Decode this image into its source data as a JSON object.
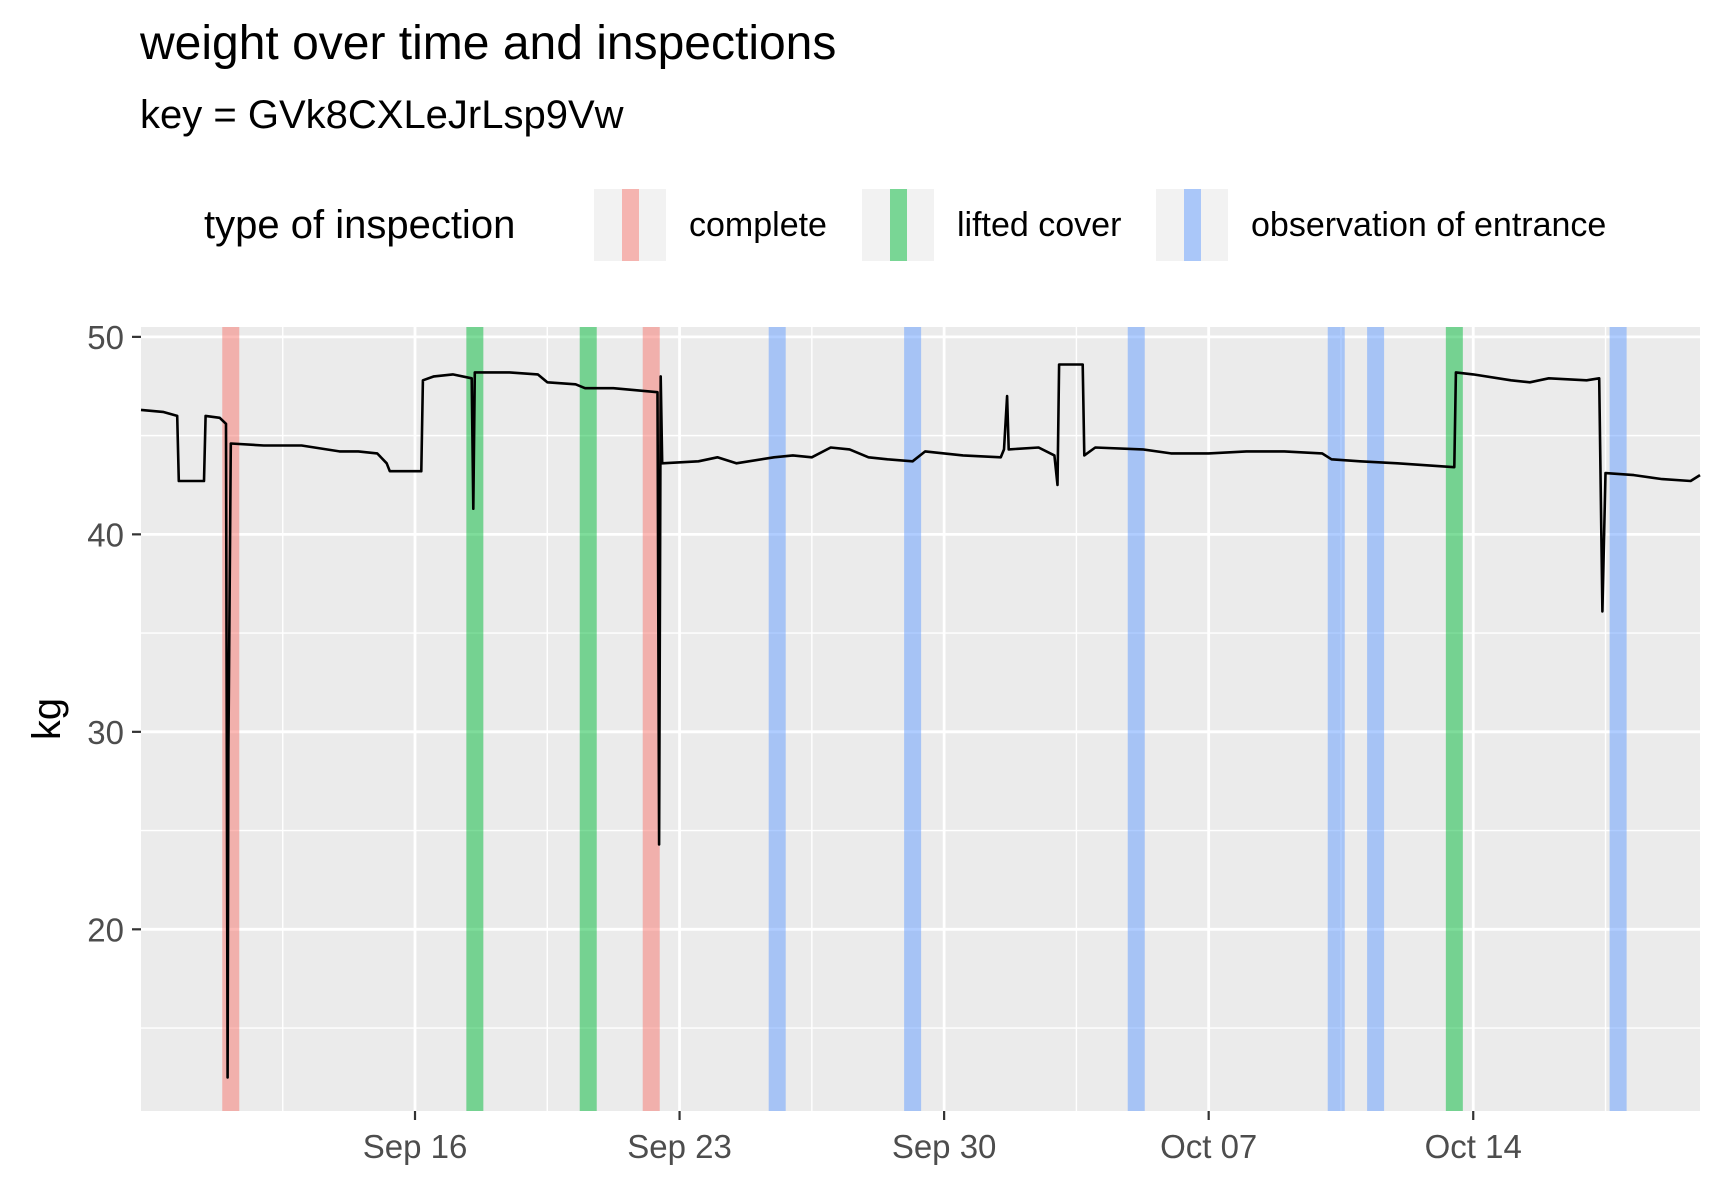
{
  "chart_data": {
    "type": "line",
    "title": "weight over time and inspections",
    "subtitle": "key = GVk8CXLeJrLsp9Vw",
    "xlabel": "",
    "ylabel": "kg",
    "x_type": "date",
    "xlim": [
      "2025-09-08T18:00",
      "2025-10-20T00:00"
    ],
    "ylim": [
      10.8,
      50.5
    ],
    "x_ticks": [
      "2025-09-16",
      "2025-09-23",
      "2025-09-30",
      "2025-10-07",
      "2025-10-14"
    ],
    "x_tick_labels": [
      "Sep 16",
      "Sep 23",
      "Sep 30",
      "Oct 07",
      "Oct 14"
    ],
    "y_ticks": [
      20,
      30,
      40,
      50
    ],
    "y_tick_labels": [
      "20",
      "30",
      "40",
      "50"
    ],
    "grid": true,
    "legend": {
      "title": "type of inspection",
      "position": "top",
      "items": [
        {
          "label": "complete",
          "color": "#f8766d"
        },
        {
          "label": "lifted cover",
          "color": "#00ba38"
        },
        {
          "label": "observation of entrance",
          "color": "#619cff"
        }
      ]
    },
    "inspections": [
      {
        "date": "2025-09-11T03:00",
        "type": "complete"
      },
      {
        "date": "2025-09-17T14:00",
        "type": "lifted cover"
      },
      {
        "date": "2025-09-20T14:00",
        "type": "lifted cover"
      },
      {
        "date": "2025-09-22T06:00",
        "type": "complete"
      },
      {
        "date": "2025-09-25T14:00",
        "type": "observation of entrance"
      },
      {
        "date": "2025-09-29T04:00",
        "type": "observation of entrance"
      },
      {
        "date": "2025-10-05T02:00",
        "type": "observation of entrance"
      },
      {
        "date": "2025-10-10T09:00",
        "type": "observation of entrance"
      },
      {
        "date": "2025-10-11T10:00",
        "type": "observation of entrance"
      },
      {
        "date": "2025-10-13T12:00",
        "type": "lifted cover"
      },
      {
        "date": "2025-10-17T20:00",
        "type": "observation of entrance"
      }
    ],
    "series": [
      {
        "color": "#000000",
        "points": [
          [
            "2025-09-08T18:00",
            46.3
          ],
          [
            "2025-09-09T08:00",
            46.2
          ],
          [
            "2025-09-09T17:00",
            46.0
          ],
          [
            "2025-09-09T18:00",
            42.7
          ],
          [
            "2025-09-10T10:00",
            42.7
          ],
          [
            "2025-09-10T11:00",
            46.0
          ],
          [
            "2025-09-10T20:00",
            45.9
          ],
          [
            "2025-09-11T00:00",
            45.6
          ],
          [
            "2025-09-11T01:00",
            12.5
          ],
          [
            "2025-09-11T01:30",
            29.0
          ],
          [
            "2025-09-11T03:00",
            44.6
          ],
          [
            "2025-09-12T00:00",
            44.5
          ],
          [
            "2025-09-13T00:00",
            44.5
          ],
          [
            "2025-09-14T00:00",
            44.2
          ],
          [
            "2025-09-14T12:00",
            44.2
          ],
          [
            "2025-09-15T00:00",
            44.1
          ],
          [
            "2025-09-15T06:00",
            43.6
          ],
          [
            "2025-09-15T08:00",
            43.2
          ],
          [
            "2025-09-16T04:00",
            43.2
          ],
          [
            "2025-09-16T05:00",
            47.8
          ],
          [
            "2025-09-16T12:00",
            48.0
          ],
          [
            "2025-09-17T00:00",
            48.1
          ],
          [
            "2025-09-17T12:00",
            47.9
          ],
          [
            "2025-09-17T13:00",
            41.3
          ],
          [
            "2025-09-17T14:00",
            48.2
          ],
          [
            "2025-09-18T12:00",
            48.2
          ],
          [
            "2025-09-19T06:00",
            48.1
          ],
          [
            "2025-09-19T12:00",
            47.7
          ],
          [
            "2025-09-20T06:00",
            47.6
          ],
          [
            "2025-09-20T12:00",
            47.4
          ],
          [
            "2025-09-21T06:00",
            47.4
          ],
          [
            "2025-09-21T20:00",
            47.3
          ],
          [
            "2025-09-22T10:00",
            47.2
          ],
          [
            "2025-09-22T11:00",
            24.3
          ],
          [
            "2025-09-22T12:00",
            48.0
          ],
          [
            "2025-09-22T13:00",
            43.6
          ],
          [
            "2025-09-23T12:00",
            43.7
          ],
          [
            "2025-09-24T00:00",
            43.9
          ],
          [
            "2025-09-24T12:00",
            43.6
          ],
          [
            "2025-09-25T12:00",
            43.9
          ],
          [
            "2025-09-26T00:00",
            44.0
          ],
          [
            "2025-09-26T12:00",
            43.9
          ],
          [
            "2025-09-27T00:00",
            44.4
          ],
          [
            "2025-09-27T12:00",
            44.3
          ],
          [
            "2025-09-28T00:00",
            43.9
          ],
          [
            "2025-09-28T12:00",
            43.8
          ],
          [
            "2025-09-29T04:00",
            43.7
          ],
          [
            "2025-09-29T12:00",
            44.2
          ],
          [
            "2025-09-30T12:00",
            44.0
          ],
          [
            "2025-10-01T12:00",
            43.9
          ],
          [
            "2025-10-01T14:00",
            44.3
          ],
          [
            "2025-10-01T16:00",
            47.0
          ],
          [
            "2025-10-01T17:00",
            44.3
          ],
          [
            "2025-10-02T12:00",
            44.4
          ],
          [
            "2025-10-02T22:00",
            44.0
          ],
          [
            "2025-10-03T00:00",
            42.5
          ],
          [
            "2025-10-03T01:00",
            48.6
          ],
          [
            "2025-10-03T16:00",
            48.6
          ],
          [
            "2025-10-03T17:00",
            44.0
          ],
          [
            "2025-10-04T00:00",
            44.4
          ],
          [
            "2025-10-05T06:00",
            44.3
          ],
          [
            "2025-10-06T00:00",
            44.1
          ],
          [
            "2025-10-07T00:00",
            44.1
          ],
          [
            "2025-10-08T00:00",
            44.2
          ],
          [
            "2025-10-09T00:00",
            44.2
          ],
          [
            "2025-10-10T00:00",
            44.1
          ],
          [
            "2025-10-10T06:00",
            43.8
          ],
          [
            "2025-10-11T00:00",
            43.7
          ],
          [
            "2025-10-12T00:00",
            43.6
          ],
          [
            "2025-10-13T12:00",
            43.4
          ],
          [
            "2025-10-13T13:00",
            48.2
          ],
          [
            "2025-10-14T00:00",
            48.1
          ],
          [
            "2025-10-15T00:00",
            47.8
          ],
          [
            "2025-10-15T12:00",
            47.7
          ],
          [
            "2025-10-16T00:00",
            47.9
          ],
          [
            "2025-10-17T00:00",
            47.8
          ],
          [
            "2025-10-17T08:00",
            47.9
          ],
          [
            "2025-10-17T10:00",
            36.1
          ],
          [
            "2025-10-17T12:00",
            43.1
          ],
          [
            "2025-10-18T06:00",
            43.0
          ],
          [
            "2025-10-19T00:00",
            42.8
          ],
          [
            "2025-10-19T18:00",
            42.7
          ],
          [
            "2025-10-20T00:00",
            43.0
          ]
        ]
      }
    ]
  }
}
